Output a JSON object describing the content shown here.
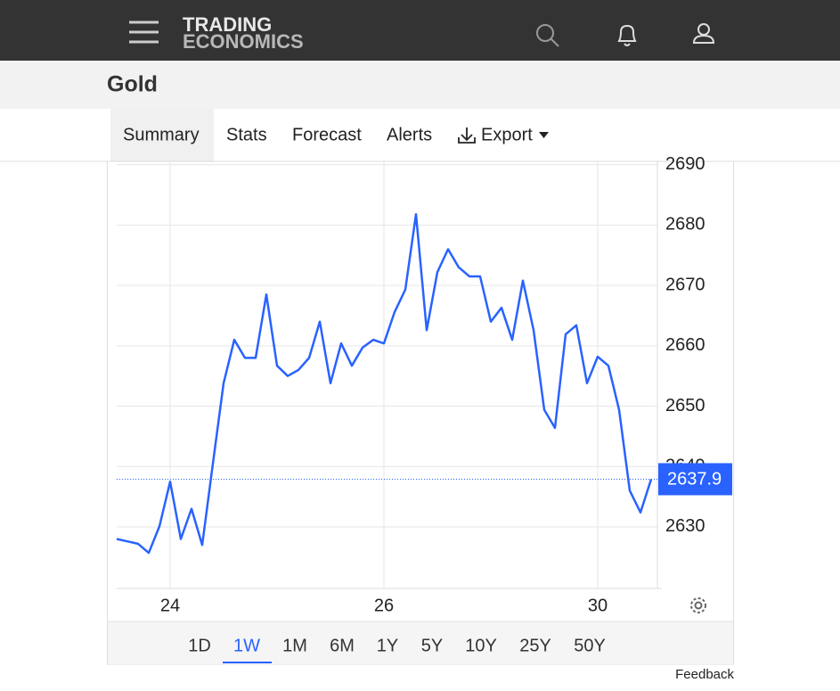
{
  "header": {
    "logo": [
      "TRADING",
      "ECONOMICS"
    ]
  },
  "title": "Gold",
  "tabs": [
    "Summary",
    "Stats",
    "Forecast",
    "Alerts",
    "Export"
  ],
  "ranges": [
    "1D",
    "1W",
    "1M",
    "6M",
    "1Y",
    "5Y",
    "10Y",
    "25Y",
    "50Y"
  ],
  "feedback": "Feedback",
  "chart_data": {
    "type": "line",
    "categories": [
      null,
      null,
      null,
      null,
      null,
      "24",
      null,
      null,
      null,
      null,
      null,
      null,
      null,
      null,
      null,
      null,
      null,
      null,
      null,
      null,
      null,
      null,
      null,
      null,
      null,
      "26",
      null,
      null,
      null,
      null,
      null,
      null,
      null,
      null,
      null,
      null,
      null,
      null,
      null,
      null,
      null,
      null,
      null,
      null,
      null,
      "30",
      null,
      null,
      null,
      null,
      null
    ],
    "series": [
      {
        "name": "Gold",
        "color": "#2962ff",
        "values": [
          2628,
          2627.6,
          2627.2,
          2625.7,
          2630.1,
          2637.5,
          2628,
          2633,
          2627,
          2640.5,
          2653.8,
          2661,
          2658,
          2658,
          2668.5,
          2656.7,
          2655,
          2656,
          2658,
          2664,
          2653.8,
          2660.4,
          2656.7,
          2659.7,
          2661,
          2660.4,
          2665.6,
          2669.3,
          2681.8,
          2662.6,
          2672.2,
          2676,
          2673,
          2671.5,
          2671.5,
          2664,
          2666.3,
          2661,
          2670.8,
          2662.6,
          2649.4,
          2646.4,
          2661.9,
          2663.4,
          2653.8,
          2658.2,
          2656.7,
          2649.4,
          2636,
          2632.4,
          2637.9
        ]
      }
    ],
    "ylim": [
      2619.8,
      2690.7
    ],
    "yticks": [
      2630,
      2640,
      2650,
      2660,
      2670,
      2680,
      2690
    ],
    "grid": true
  }
}
